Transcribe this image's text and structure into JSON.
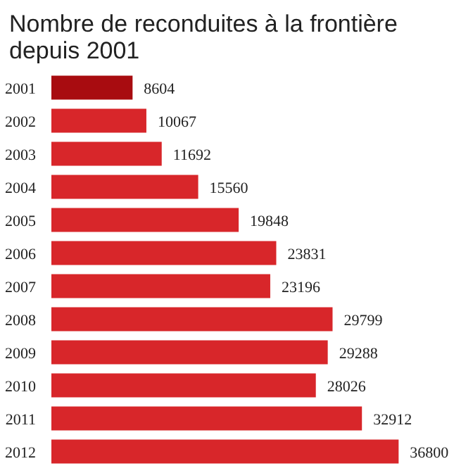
{
  "chart_data": {
    "type": "bar",
    "orientation": "horizontal",
    "title": "Nombre de reconduites à la frontière depuis 2001",
    "categories": [
      "2001",
      "2002",
      "2003",
      "2004",
      "2005",
      "2006",
      "2007",
      "2008",
      "2009",
      "2010",
      "2011",
      "2012"
    ],
    "values": [
      8604,
      10067,
      11692,
      15560,
      19848,
      23831,
      23196,
      29799,
      29288,
      28026,
      32912,
      36800
    ],
    "colors": [
      "#a80c10",
      "#d8262a",
      "#d8262a",
      "#d8262a",
      "#d8262a",
      "#d8262a",
      "#d8262a",
      "#d8262a",
      "#d8262a",
      "#d8262a",
      "#d8262a",
      "#d8262a"
    ],
    "data_labels": true,
    "grid": false
  }
}
